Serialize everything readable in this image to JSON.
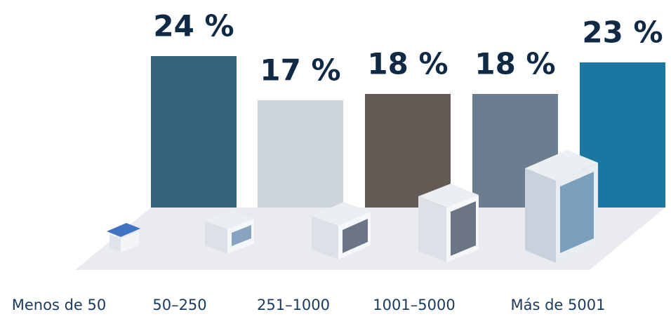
{
  "chart_data": {
    "type": "bar",
    "categories": [
      "Menos de 50",
      "50–250",
      "251–1000",
      "1001–5000",
      "Más de 5001"
    ],
    "values": [
      24,
      17,
      18,
      18,
      23
    ],
    "value_labels": [
      "24 %",
      "17 %",
      "18 %",
      "18 %",
      "23 %"
    ],
    "colors": [
      "#33647a",
      "#cfd5dd",
      "#635a56",
      "#6a7e8f",
      "#1a77a1"
    ],
    "ylim": [
      0,
      30
    ]
  }
}
